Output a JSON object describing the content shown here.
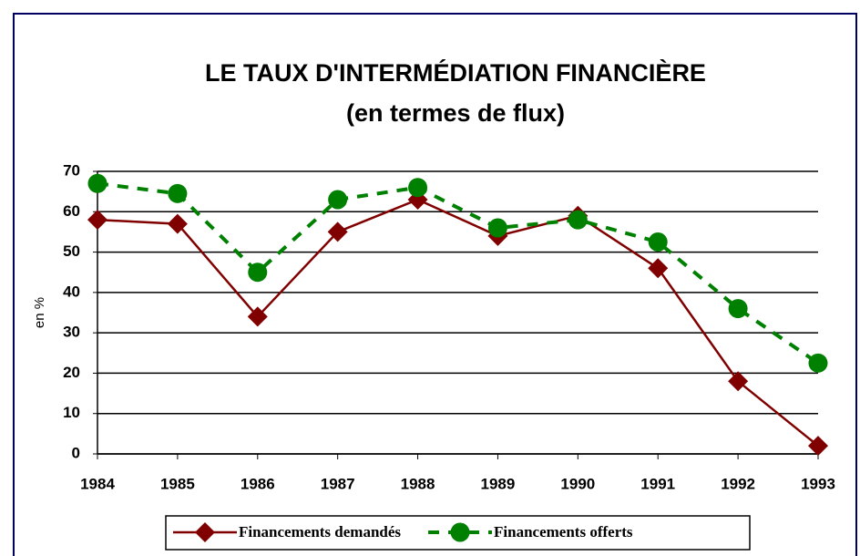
{
  "chart_data": {
    "type": "line",
    "title": "LE TAUX D'INTERMÉDIATION FINANCIÈRE",
    "subtitle": "(en termes de flux)",
    "y_label": "en %",
    "x": [
      1984,
      1985,
      1986,
      1987,
      1988,
      1989,
      1990,
      1991,
      1992,
      1993
    ],
    "xlim": [
      1984,
      1993
    ],
    "xticks": [
      1984,
      1985,
      1986,
      1987,
      1988,
      1989,
      1990,
      1991,
      1992,
      1993
    ],
    "ylim": [
      0,
      70
    ],
    "yticks": [
      0,
      10,
      20,
      30,
      40,
      50,
      60,
      70
    ],
    "grid": true,
    "legend": "bottom",
    "series": [
      {
        "name": "Financements demandés",
        "color": "#800000",
        "marker": "diamond",
        "dashed": false,
        "values": [
          58,
          57,
          34,
          55,
          63,
          54,
          59,
          46,
          18,
          2
        ]
      },
      {
        "name": "Financements offerts",
        "color": "#008000",
        "marker": "circle",
        "dashed": true,
        "values": [
          67,
          64.5,
          45,
          63,
          66,
          56,
          58,
          52.5,
          36,
          22.5
        ]
      }
    ]
  }
}
